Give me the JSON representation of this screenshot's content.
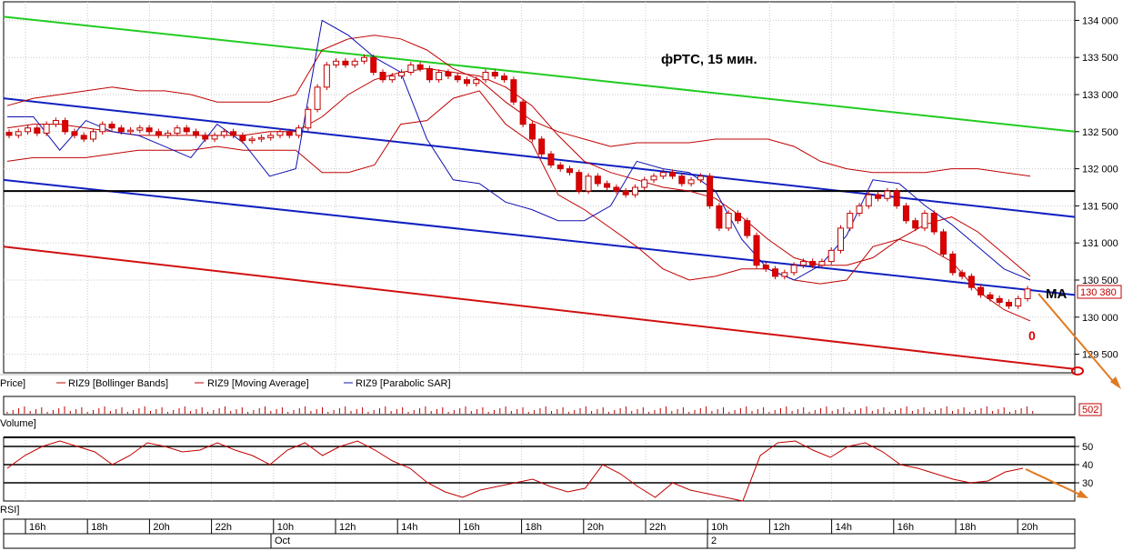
{
  "chart_data": {
    "type": "candlestick",
    "title": "фРТС,  15 мин.",
    "price_axis": {
      "ticks": [
        "134 000",
        "133 500",
        "133 000",
        "132 500",
        "132 000",
        "131 500",
        "131 000",
        "130 500",
        "130 000",
        "129 500"
      ],
      "range": [
        129250,
        134250
      ]
    },
    "last_price_label": "130 380",
    "last_price": 130380,
    "volume_label": "502",
    "rsi_axis": {
      "ticks": [
        "50",
        "40",
        "30"
      ],
      "range": [
        20,
        55
      ]
    },
    "time_ticks": [
      "16h",
      "18h",
      "20h",
      "22h",
      "10h",
      "12h",
      "14h",
      "16h",
      "18h",
      "20h",
      "22h",
      "10h",
      "12h",
      "14h",
      "16h",
      "18h",
      "20h"
    ],
    "date_labels": [
      "Oct",
      "2"
    ],
    "legend": [
      {
        "label": "Price]"
      },
      {
        "label": "RIZ9 [Bollinger Bands]",
        "color": "#c00000"
      },
      {
        "label": "RIZ9 [Moving Average]",
        "color": "#c00000"
      },
      {
        "label": "RIZ9 [Parabolic SAR]",
        "color": "#1010b0"
      }
    ],
    "panel_labels": {
      "volume": "Volume]",
      "rsi": "RSI]"
    },
    "annotations": {
      "ma_text": "MA",
      "target_mark": "0"
    },
    "candles_close": [
      132450,
      132500,
      132550,
      132480,
      132600,
      132650,
      132500,
      132450,
      132400,
      132500,
      132600,
      132550,
      132500,
      132520,
      132550,
      132500,
      132450,
      132480,
      132550,
      132500,
      132450,
      132400,
      132450,
      132500,
      132450,
      132380,
      132400,
      132420,
      132450,
      132500,
      132450,
      132550,
      132800,
      133100,
      133400,
      133450,
      133400,
      133450,
      133500,
      133300,
      133200,
      133250,
      133300,
      133400,
      133350,
      133200,
      133300,
      133250,
      133200,
      133150,
      133200,
      133300,
      133250,
      133200,
      132900,
      132600,
      132400,
      132200,
      132050,
      132000,
      131950,
      131700,
      131900,
      131800,
      131750,
      131700,
      131650,
      131750,
      131850,
      131900,
      131950,
      131900,
      131800,
      131850,
      131900,
      131500,
      131200,
      131400,
      131300,
      131100,
      130700,
      130650,
      130550,
      130600,
      130700,
      130750,
      130700,
      130750,
      130900,
      131200,
      131400,
      131500,
      131650,
      131600,
      131700,
      131500,
      131300,
      131200,
      131400,
      131150,
      130850,
      130600,
      130550,
      130400,
      130300,
      130250,
      130200,
      130150,
      130250,
      130380
    ],
    "bollinger_upper": [
      132850,
      132950,
      133000,
      133050,
      133100,
      133050,
      133050,
      133000,
      132900,
      132900,
      132900,
      133000,
      133600,
      133750,
      133800,
      133750,
      133600,
      133350,
      133200,
      132900,
      132650,
      132500,
      132400,
      132300,
      132350,
      132350,
      132350,
      132400,
      132400,
      132400,
      132300,
      132100,
      132000,
      131950,
      131950,
      131950,
      132000,
      132000,
      131950,
      131900
    ],
    "bollinger_lower": [
      132100,
      132150,
      132150,
      132150,
      132200,
      132250,
      132250,
      132250,
      132300,
      132250,
      132250,
      132250,
      131950,
      131950,
      132050,
      132600,
      132650,
      132950,
      133050,
      132600,
      132350,
      131650,
      131450,
      131200,
      130950,
      130650,
      130500,
      130550,
      130650,
      130650,
      130500,
      130450,
      130500,
      130950,
      131050,
      130950,
      130750,
      130350,
      130100,
      129950
    ],
    "moving_average": [
      132550,
      132600,
      132600,
      132550,
      132500,
      132450,
      132450,
      132450,
      132450,
      132450,
      132500,
      132500,
      132700,
      133000,
      133200,
      133300,
      133350,
      133300,
      133250,
      133100,
      132850,
      132450,
      132100,
      131950,
      131850,
      131750,
      131700,
      131600,
      131350,
      131050,
      130800,
      130700,
      130700,
      130800,
      131050,
      131250,
      131350,
      131150,
      130850,
      130550
    ],
    "parabolic_sar": [
      132700,
      132700,
      132250,
      132650,
      132500,
      132450,
      132300,
      132150,
      132600,
      132350,
      131900,
      132000,
      134000,
      133800,
      133500,
      133300,
      132400,
      131850,
      131800,
      131550,
      131450,
      131300,
      131300,
      131500,
      132100,
      132000,
      131950,
      131700,
      131050,
      130650,
      130500,
      130700,
      131100,
      131850,
      131800,
      131500,
      131250,
      130950,
      130650,
      130500
    ],
    "trend_lines": {
      "upper_green": [
        134050,
        132500
      ],
      "mid_blue_upper": [
        132950,
        131350
      ],
      "mid_blue_lower": [
        131850,
        130300
      ],
      "lower_red": [
        130950,
        129300
      ],
      "horizontal_black": 131700
    },
    "rsi_values": [
      38,
      45,
      50,
      53,
      50,
      47,
      40,
      45,
      52,
      50,
      47,
      48,
      52,
      48,
      45,
      40,
      48,
      52,
      45,
      50,
      53,
      48,
      42,
      38,
      30,
      25,
      22,
      26,
      28,
      30,
      32,
      28,
      25,
      27,
      40,
      35,
      28,
      22,
      30,
      26,
      24,
      22,
      20,
      45,
      52,
      53,
      48,
      44,
      50,
      52,
      47,
      40,
      38,
      35,
      32,
      30,
      31,
      36,
      38
    ]
  }
}
